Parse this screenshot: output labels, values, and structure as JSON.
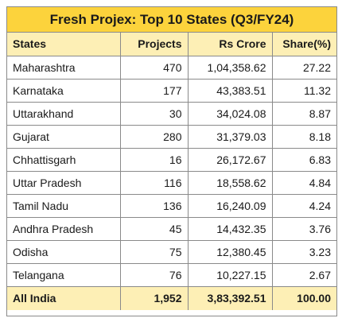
{
  "title": "Fresh Projex: Top 10 States (Q3/FY24)",
  "colors": {
    "header_fill": "#fcd33c",
    "row_fill": "#fdefb5",
    "border": "#8a8a8a"
  },
  "columns": [
    "States",
    "Projects",
    "Rs Crore",
    "Share(%)"
  ],
  "rows": [
    [
      "Maharashtra",
      "470",
      "1,04,358.62",
      "27.22"
    ],
    [
      "Karnataka",
      "177",
      "43,383.51",
      "11.32"
    ],
    [
      "Uttarakhand",
      "30",
      "34,024.08",
      "8.87"
    ],
    [
      "Gujarat",
      "280",
      "31,379.03",
      "8.18"
    ],
    [
      "Chhattisgarh",
      "16",
      "26,172.67",
      "6.83"
    ],
    [
      "Uttar Pradesh",
      "116",
      "18,558.62",
      "4.84"
    ],
    [
      "Tamil Nadu",
      "136",
      "16,240.09",
      "4.24"
    ],
    [
      "Andhra Pradesh",
      "45",
      "14,432.35",
      "3.76"
    ],
    [
      "Odisha",
      "75",
      "12,380.45",
      "3.23"
    ],
    [
      "Telangana",
      "76",
      "10,227.15",
      "2.67"
    ]
  ],
  "total": [
    "All India",
    "1,952",
    "3,83,392.51",
    "100.00"
  ]
}
